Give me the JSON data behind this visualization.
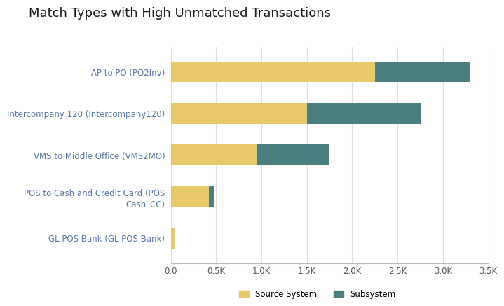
{
  "title": "Match Types with High Unmatched Transactions",
  "categories": [
    "GL POS Bank (GL POS Bank)",
    "POS to Cash and Credit Card (POS\nCash_CC)",
    "VMS to Middle Office (VMS2MO)",
    "Intercompany 120 (Intercompany120)",
    "AP to PO (PO2Inv)"
  ],
  "source_values": [
    50,
    420,
    950,
    1500,
    2250
  ],
  "subsystem_values": [
    0,
    60,
    800,
    1250,
    1050
  ],
  "source_color": "#E8C96A",
  "subsystem_color": "#4A7F7F",
  "xlim": [
    0,
    3500
  ],
  "xticks": [
    0,
    500,
    1000,
    1500,
    2000,
    2500,
    3000,
    3500
  ],
  "xticklabels": [
    "0.0",
    "0.5K",
    "1.0K",
    "1.5K",
    "2.0K",
    "2.5K",
    "3.0K",
    "3.5K"
  ],
  "background_color": "#FFFFFF",
  "grid_color": "#E0E0E0",
  "title_color": "#1A1A1A",
  "ytick_color": "#5577AA",
  "xtick_color": "#555555",
  "title_fontsize": 13,
  "tick_fontsize": 8.5,
  "bar_height": 0.5,
  "legend_labels": [
    "Source System",
    "Subsystem"
  ]
}
